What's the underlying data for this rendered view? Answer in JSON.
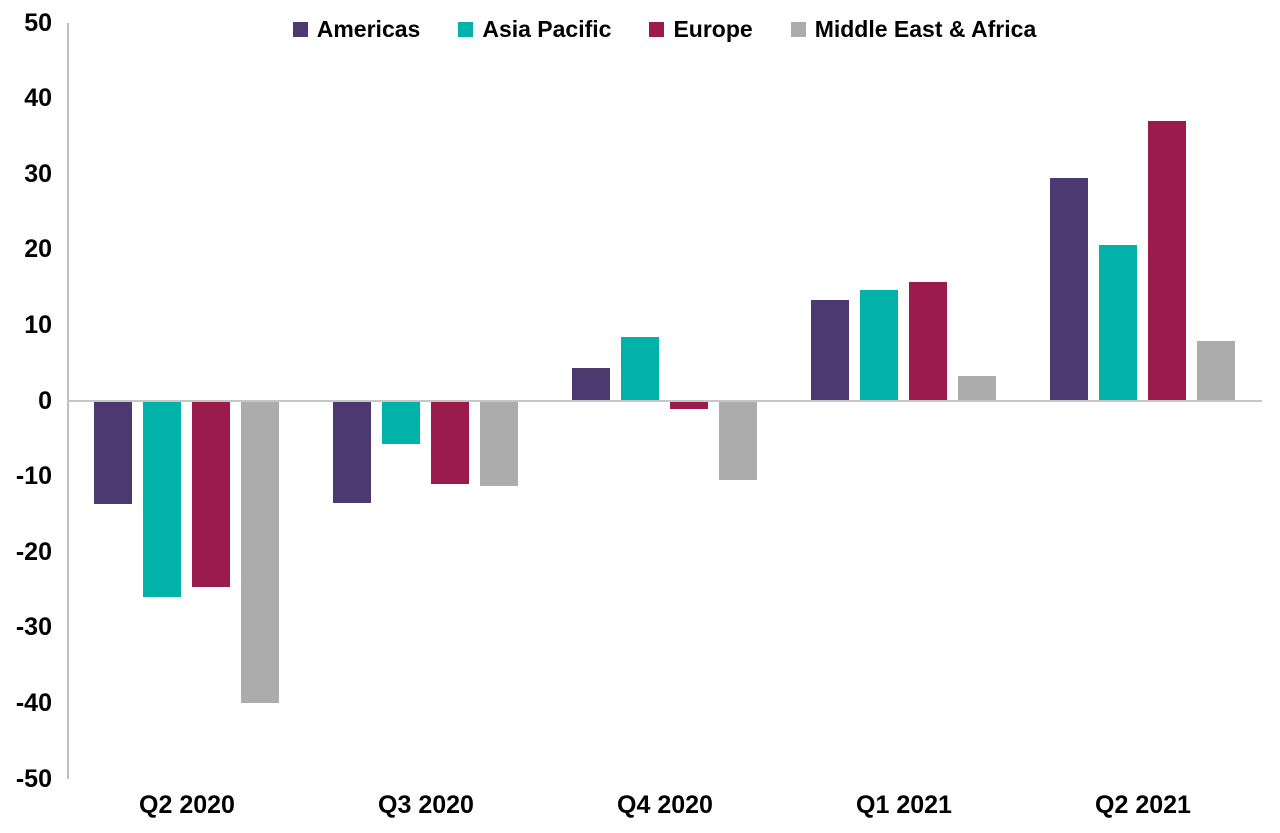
{
  "chart_data": {
    "type": "bar",
    "title": "",
    "categories": [
      "Q2 2020",
      "Q3 2020",
      "Q4 2020",
      "Q1 2021",
      "Q2 2021"
    ],
    "series": [
      {
        "name": "Americas",
        "color": "#4B3970",
        "values": [
          -13.6,
          -13.5,
          4.4,
          13.3,
          29.5
        ]
      },
      {
        "name": "Asia Pacific",
        "color": "#00B2A9",
        "values": [
          -25.9,
          -5.7,
          8.4,
          14.7,
          20.7
        ]
      },
      {
        "name": "Europe",
        "color": "#9B1B4D",
        "values": [
          -24.6,
          -11.0,
          -1.0,
          15.7,
          37.0
        ]
      },
      {
        "name": "Middle East & Africa",
        "color": "#ACACAC",
        "values": [
          -40.0,
          -11.2,
          -10.5,
          3.3,
          7.9
        ]
      }
    ],
    "ylim": [
      -50,
      50
    ],
    "ytick_step": 10,
    "ytick_labels": [
      "50",
      "40",
      "30",
      "20",
      "10",
      "0",
      "-10",
      "-20",
      "-30",
      "-40",
      "-50"
    ],
    "xlabel": "",
    "ylabel": "",
    "legend_position": "top",
    "grid": false,
    "colors": {
      "axis_line": "#bdbdbd",
      "zero_line": "#c6c6c6",
      "text": "#000000",
      "background": "#ffffff"
    }
  }
}
